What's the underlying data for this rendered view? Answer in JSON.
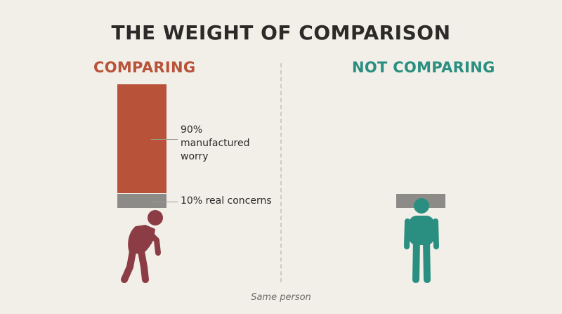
{
  "title": "THE WEIGHT OF COMPARISON",
  "left": {
    "heading": "COMPARING",
    "worry_label": "90% manufactured worry",
    "real_label": "10% real concerns",
    "worry_share": 0.9,
    "real_share": 0.1
  },
  "right": {
    "heading": "NOT COMPARING"
  },
  "footer": "Same person",
  "colors": {
    "background": "#f1efe8",
    "title": "#2b2a28",
    "comparing": "#b8533a",
    "not_comparing": "#2a8f80",
    "real_concerns": "#8c8b88",
    "bent_figure": "#8b3c44",
    "upright_figure": "#2a8f80"
  },
  "icons": {
    "bent_figure": "stooped-person-icon",
    "upright_figure": "standing-person-icon"
  }
}
